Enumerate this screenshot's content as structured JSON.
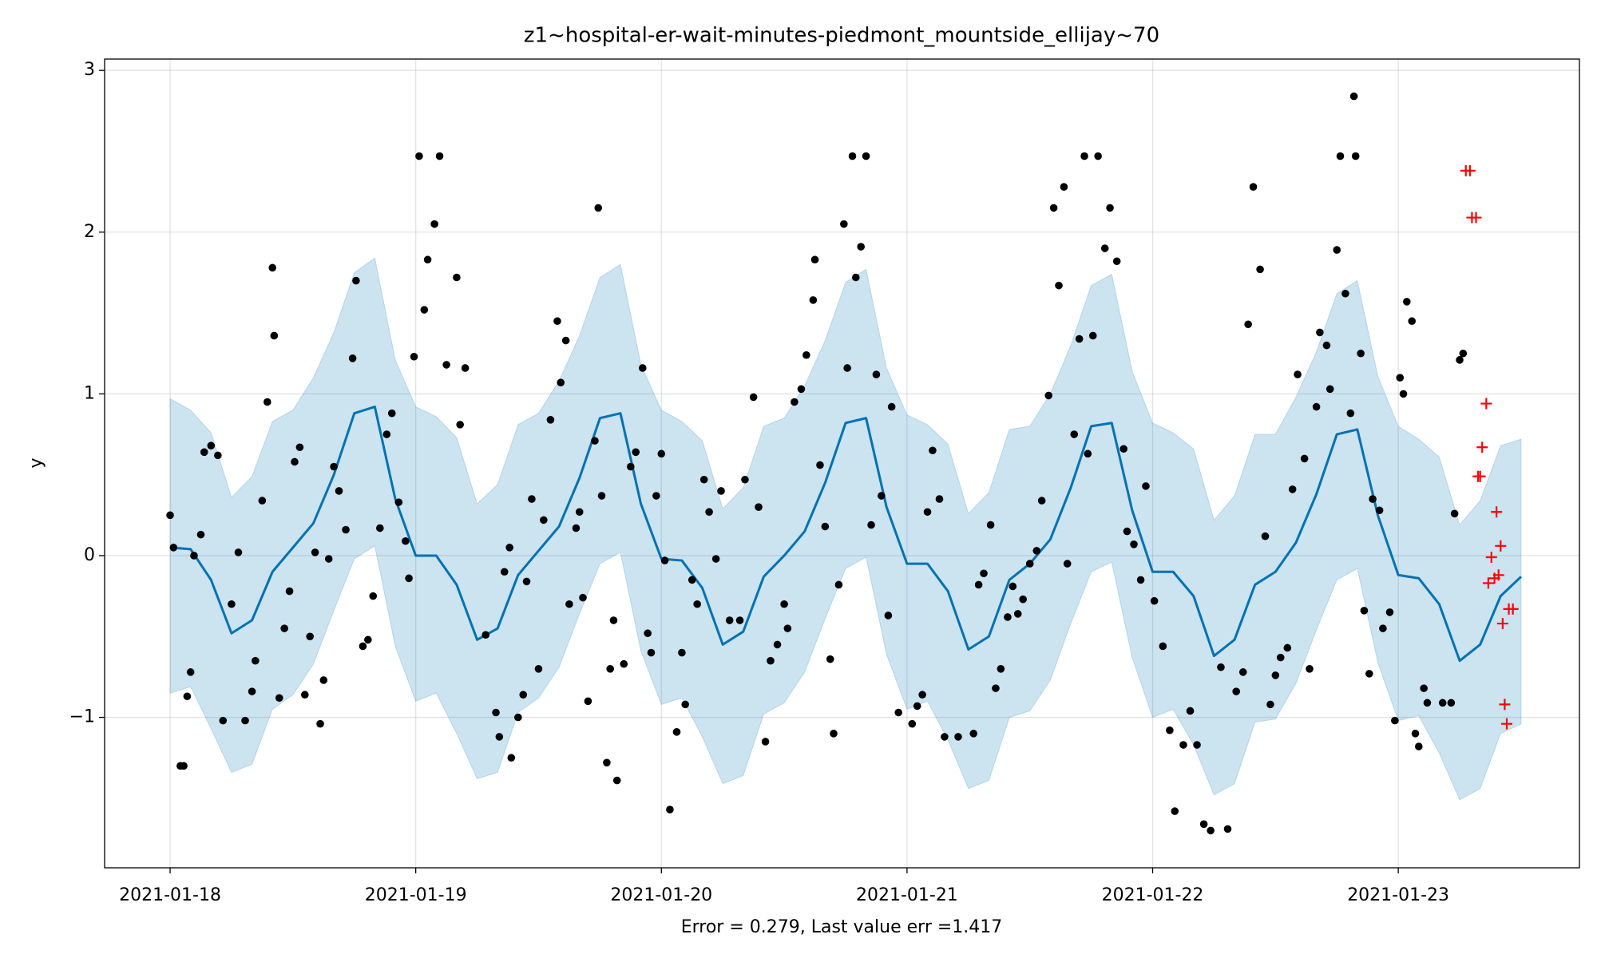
{
  "chart_data": {
    "type": "line",
    "title": "z1~hospital-er-wait-minutes-piedmont_mountside_ellijay~70",
    "xlabel": "Error = 0.279, Last value err =1.417",
    "ylabel": "y",
    "xlim": [
      "2021-01-17 17:36",
      "2021-01-23 17:42"
    ],
    "ylim": [
      -1.93,
      3.07
    ],
    "xticks": [
      "2021-01-18",
      "2021-01-19",
      "2021-01-20",
      "2021-01-21",
      "2021-01-22",
      "2021-01-23"
    ],
    "yticks": [
      {
        "value": -1,
        "label": "−1"
      },
      0,
      1,
      2,
      3
    ],
    "grid": true,
    "series": [
      {
        "type": "line",
        "color": "#0072b2",
        "band_color": "#0072b2",
        "band_alpha": 0.2,
        "x": [
          "2021-01-18 00:00",
          "2021-01-18 02:00",
          "2021-01-18 04:00",
          "2021-01-18 06:00",
          "2021-01-18 08:00",
          "2021-01-18 10:00",
          "2021-01-18 12:00",
          "2021-01-18 14:00",
          "2021-01-18 16:00",
          "2021-01-18 18:00",
          "2021-01-18 20:00",
          "2021-01-18 22:00",
          "2021-01-19 00:00",
          "2021-01-19 02:00",
          "2021-01-19 04:00",
          "2021-01-19 06:00",
          "2021-01-19 08:00",
          "2021-01-19 10:00",
          "2021-01-19 12:00",
          "2021-01-19 14:00",
          "2021-01-19 16:00",
          "2021-01-19 18:00",
          "2021-01-19 20:00",
          "2021-01-19 22:00",
          "2021-01-20 00:00",
          "2021-01-20 02:00",
          "2021-01-20 04:00",
          "2021-01-20 06:00",
          "2021-01-20 08:00",
          "2021-01-20 10:00",
          "2021-01-20 12:00",
          "2021-01-20 14:00",
          "2021-01-20 16:00",
          "2021-01-20 18:00",
          "2021-01-20 20:00",
          "2021-01-20 22:00",
          "2021-01-21 00:00",
          "2021-01-21 02:00",
          "2021-01-21 04:00",
          "2021-01-21 06:00",
          "2021-01-21 08:00",
          "2021-01-21 10:00",
          "2021-01-21 12:00",
          "2021-01-21 14:00",
          "2021-01-21 16:00",
          "2021-01-21 18:00",
          "2021-01-21 20:00",
          "2021-01-21 22:00",
          "2021-01-22 00:00",
          "2021-01-22 02:00",
          "2021-01-22 04:00",
          "2021-01-22 06:00",
          "2021-01-22 08:00",
          "2021-01-22 10:00",
          "2021-01-22 12:00",
          "2021-01-22 14:00",
          "2021-01-22 16:00",
          "2021-01-22 18:00",
          "2021-01-22 20:00",
          "2021-01-22 22:00",
          "2021-01-23 00:00",
          "2021-01-23 02:00",
          "2021-01-23 04:00",
          "2021-01-23 06:00",
          "2021-01-23 08:00",
          "2021-01-23 10:00",
          "2021-01-23 12:00"
        ],
        "values": [
          0.05,
          0.04,
          -0.15,
          -0.48,
          -0.4,
          -0.1,
          0.05,
          0.2,
          0.5,
          0.88,
          0.92,
          0.35,
          0.0,
          0.0,
          -0.18,
          -0.52,
          -0.45,
          -0.12,
          0.03,
          0.18,
          0.48,
          0.85,
          0.88,
          0.32,
          -0.02,
          -0.03,
          -0.2,
          -0.55,
          -0.47,
          -0.13,
          0.0,
          0.15,
          0.45,
          0.82,
          0.85,
          0.3,
          -0.05,
          -0.05,
          -0.22,
          -0.58,
          -0.5,
          -0.15,
          -0.05,
          0.1,
          0.42,
          0.8,
          0.82,
          0.28,
          -0.1,
          -0.1,
          -0.25,
          -0.62,
          -0.52,
          -0.18,
          -0.1,
          0.08,
          0.38,
          0.75,
          0.78,
          0.25,
          -0.12,
          -0.14,
          -0.3,
          -0.65,
          -0.55,
          -0.25,
          -0.13
        ],
        "upper": [
          0.97,
          0.9,
          0.76,
          0.36,
          0.49,
          0.83,
          0.9,
          1.1,
          1.38,
          1.75,
          1.84,
          1.21,
          0.92,
          0.86,
          0.73,
          0.32,
          0.44,
          0.81,
          0.88,
          1.08,
          1.36,
          1.72,
          1.8,
          1.18,
          0.9,
          0.83,
          0.71,
          0.29,
          0.42,
          0.8,
          0.85,
          1.05,
          1.33,
          1.69,
          1.77,
          1.16,
          0.87,
          0.81,
          0.69,
          0.26,
          0.39,
          0.78,
          0.8,
          1.0,
          1.3,
          1.67,
          1.74,
          1.14,
          0.82,
          0.76,
          0.66,
          0.22,
          0.37,
          0.75,
          0.75,
          0.98,
          1.26,
          1.62,
          1.7,
          1.11,
          0.8,
          0.72,
          0.61,
          0.19,
          0.34,
          0.68,
          0.72
        ],
        "lower": [
          -0.85,
          -0.81,
          -1.07,
          -1.34,
          -1.29,
          -0.95,
          -0.86,
          -0.67,
          -0.34,
          -0.02,
          0.06,
          -0.56,
          -0.9,
          -0.85,
          -1.1,
          -1.38,
          -1.34,
          -0.97,
          -0.88,
          -0.69,
          -0.36,
          -0.05,
          0.02,
          -0.59,
          -0.92,
          -0.88,
          -1.12,
          -1.41,
          -1.36,
          -0.98,
          -0.91,
          -0.72,
          -0.39,
          -0.08,
          -0.01,
          -0.61,
          -0.95,
          -0.9,
          -1.14,
          -1.44,
          -1.39,
          -1.0,
          -0.96,
          -0.77,
          -0.42,
          -0.1,
          -0.04,
          -0.63,
          -1.0,
          -0.95,
          -1.17,
          -1.48,
          -1.41,
          -1.03,
          -1.01,
          -0.79,
          -0.46,
          -0.15,
          -0.08,
          -0.66,
          -1.02,
          -0.99,
          -1.22,
          -1.51,
          -1.44,
          -1.1,
          -1.04
        ]
      },
      {
        "type": "scatter",
        "marker": "o",
        "color": "#000000",
        "x": [
          "2021-01-18 00:00",
          "2021-01-18 00:20",
          "2021-01-18 01:00",
          "2021-01-18 01:20",
          "2021-01-18 01:40",
          "2021-01-18 02:00",
          "2021-01-18 02:20",
          "2021-01-18 03:00",
          "2021-01-18 03:20",
          "2021-01-18 04:00",
          "2021-01-18 04:40",
          "2021-01-18 05:10",
          "2021-01-18 06:00",
          "2021-01-18 06:40",
          "2021-01-18 07:20",
          "2021-01-18 08:00",
          "2021-01-18 08:20",
          "2021-01-18 09:00",
          "2021-01-18 09:30",
          "2021-01-18 10:00",
          "2021-01-18 10:10",
          "2021-01-18 10:40",
          "2021-01-18 11:10",
          "2021-01-18 11:40",
          "2021-01-18 12:10",
          "2021-01-18 12:40",
          "2021-01-18 13:10",
          "2021-01-18 13:40",
          "2021-01-18 14:10",
          "2021-01-18 14:40",
          "2021-01-18 15:00",
          "2021-01-18 15:30",
          "2021-01-18 16:00",
          "2021-01-18 16:30",
          "2021-01-18 17:10",
          "2021-01-18 17:50",
          "2021-01-18 18:10",
          "2021-01-18 18:50",
          "2021-01-18 19:20",
          "2021-01-18 19:50",
          "2021-01-18 20:30",
          "2021-01-18 21:10",
          "2021-01-18 21:40",
          "2021-01-18 22:20",
          "2021-01-18 23:00",
          "2021-01-18 23:20",
          "2021-01-18 23:50",
          "2021-01-19 00:20",
          "2021-01-19 00:50",
          "2021-01-19 01:10",
          "2021-01-19 01:50",
          "2021-01-19 02:20",
          "2021-01-19 03:00",
          "2021-01-19 04:00",
          "2021-01-19 04:20",
          "2021-01-19 04:50",
          "2021-01-19 06:50",
          "2021-01-19 07:50",
          "2021-01-19 08:10",
          "2021-01-19 08:40",
          "2021-01-19 09:10",
          "2021-01-19 09:20",
          "2021-01-19 10:00",
          "2021-01-19 10:30",
          "2021-01-19 10:50",
          "2021-01-19 11:20",
          "2021-01-19 12:00",
          "2021-01-19 12:30",
          "2021-01-19 13:10",
          "2021-01-19 13:50",
          "2021-01-19 14:10",
          "2021-01-19 14:40",
          "2021-01-19 15:00",
          "2021-01-19 15:40",
          "2021-01-19 16:00",
          "2021-01-19 16:20",
          "2021-01-19 16:50",
          "2021-01-19 17:30",
          "2021-01-19 17:50",
          "2021-01-19 18:10",
          "2021-01-19 18:40",
          "2021-01-19 19:00",
          "2021-01-19 19:20",
          "2021-01-19 19:40",
          "2021-01-19 20:20",
          "2021-01-19 21:00",
          "2021-01-19 21:30",
          "2021-01-19 22:10",
          "2021-01-19 22:40",
          "2021-01-19 23:00",
          "2021-01-19 23:30",
          "2021-01-20 00:00",
          "2021-01-20 00:20",
          "2021-01-20 00:50",
          "2021-01-20 01:30",
          "2021-01-20 02:00",
          "2021-01-20 02:20",
          "2021-01-20 03:00",
          "2021-01-20 03:30",
          "2021-01-20 04:10",
          "2021-01-20 04:40",
          "2021-01-20 05:20",
          "2021-01-20 05:50",
          "2021-01-20 06:40",
          "2021-01-20 07:40",
          "2021-01-20 08:10",
          "2021-01-20 09:00",
          "2021-01-20 09:30",
          "2021-01-20 10:10",
          "2021-01-20 10:40",
          "2021-01-20 11:20",
          "2021-01-20 12:00",
          "2021-01-20 12:20",
          "2021-01-20 13:00",
          "2021-01-20 13:40",
          "2021-01-20 14:10",
          "2021-01-20 14:50",
          "2021-01-20 15:00",
          "2021-01-20 15:30",
          "2021-01-20 16:00",
          "2021-01-20 16:30",
          "2021-01-20 16:50",
          "2021-01-20 17:20",
          "2021-01-20 17:50",
          "2021-01-20 18:10",
          "2021-01-20 18:40",
          "2021-01-20 19:00",
          "2021-01-20 19:30",
          "2021-01-20 20:00",
          "2021-01-20 20:30",
          "2021-01-20 21:00",
          "2021-01-20 21:30",
          "2021-01-20 22:10",
          "2021-01-20 22:30",
          "2021-01-20 23:10",
          "2021-01-21 00:30",
          "2021-01-21 01:00",
          "2021-01-21 01:30",
          "2021-01-21 02:00",
          "2021-01-21 02:30",
          "2021-01-21 03:10",
          "2021-01-21 03:40",
          "2021-01-21 05:00",
          "2021-01-21 06:30",
          "2021-01-21 07:00",
          "2021-01-21 07:30",
          "2021-01-21 08:10",
          "2021-01-21 08:40",
          "2021-01-21 09:10",
          "2021-01-21 09:50",
          "2021-01-21 10:20",
          "2021-01-21 10:50",
          "2021-01-21 11:20",
          "2021-01-21 12:00",
          "2021-01-21 12:40",
          "2021-01-21 13:10",
          "2021-01-21 13:50",
          "2021-01-21 14:20",
          "2021-01-21 14:50",
          "2021-01-21 15:20",
          "2021-01-21 15:40",
          "2021-01-21 16:20",
          "2021-01-21 16:50",
          "2021-01-21 17:20",
          "2021-01-21 17:40",
          "2021-01-21 18:10",
          "2021-01-21 18:40",
          "2021-01-21 19:20",
          "2021-01-21 19:50",
          "2021-01-21 20:30",
          "2021-01-21 21:10",
          "2021-01-21 21:30",
          "2021-01-21 22:10",
          "2021-01-21 22:50",
          "2021-01-21 23:20",
          "2021-01-22 00:10",
          "2021-01-22 01:00",
          "2021-01-22 01:40",
          "2021-01-22 02:10",
          "2021-01-22 03:00",
          "2021-01-22 03:40",
          "2021-01-22 04:20",
          "2021-01-22 05:00",
          "2021-01-22 05:40",
          "2021-01-22 06:40",
          "2021-01-22 07:20",
          "2021-01-22 08:10",
          "2021-01-22 08:50",
          "2021-01-22 09:20",
          "2021-01-22 09:50",
          "2021-01-22 10:30",
          "2021-01-22 11:00",
          "2021-01-22 11:30",
          "2021-01-22 12:00",
          "2021-01-22 12:30",
          "2021-01-22 13:10",
          "2021-01-22 13:40",
          "2021-01-22 14:10",
          "2021-01-22 14:50",
          "2021-01-22 15:20",
          "2021-01-22 16:00",
          "2021-01-22 16:20",
          "2021-01-22 17:00",
          "2021-01-22 17:20",
          "2021-01-22 18:00",
          "2021-01-22 18:20",
          "2021-01-22 18:50",
          "2021-01-22 19:20",
          "2021-01-22 19:40",
          "2021-01-22 19:50",
          "2021-01-22 20:20",
          "2021-01-22 20:40",
          "2021-01-22 21:10",
          "2021-01-22 21:30",
          "2021-01-22 22:10",
          "2021-01-22 22:30",
          "2021-01-22 23:10",
          "2021-01-22 23:40",
          "2021-01-23 00:10",
          "2021-01-23 00:30",
          "2021-01-23 00:50",
          "2021-01-23 01:20",
          "2021-01-23 01:40",
          "2021-01-23 02:00",
          "2021-01-23 02:30",
          "2021-01-23 02:50",
          "2021-01-23 04:20",
          "2021-01-23 05:10",
          "2021-01-23 05:30",
          "2021-01-23 06:00",
          "2021-01-23 06:20"
        ],
        "values": [
          0.25,
          0.05,
          -1.3,
          -1.3,
          -0.87,
          -0.72,
          0.0,
          0.13,
          0.64,
          0.68,
          0.62,
          -1.02,
          -0.3,
          0.02,
          -1.02,
          -0.84,
          -0.65,
          0.34,
          0.95,
          1.78,
          1.36,
          -0.88,
          -0.45,
          -0.22,
          0.58,
          0.67,
          -0.86,
          -0.5,
          0.02,
          -1.04,
          -0.77,
          -0.02,
          0.55,
          0.4,
          0.16,
          1.22,
          1.7,
          -0.56,
          -0.52,
          -0.25,
          0.17,
          0.75,
          0.88,
          0.33,
          0.09,
          -0.14,
          1.23,
          2.47,
          1.52,
          1.83,
          2.05,
          2.47,
          1.18,
          1.72,
          0.81,
          1.16,
          -0.49,
          -0.97,
          -1.12,
          -0.1,
          0.05,
          -1.25,
          -1.0,
          -0.86,
          -0.16,
          0.35,
          -0.7,
          0.22,
          0.84,
          1.45,
          1.07,
          1.33,
          -0.3,
          0.17,
          0.27,
          -0.26,
          -0.9,
          0.71,
          2.15,
          0.37,
          -1.28,
          -0.7,
          -0.4,
          -1.39,
          -0.67,
          0.55,
          0.64,
          1.16,
          -0.48,
          -0.6,
          0.37,
          0.63,
          -0.03,
          -1.57,
          -1.09,
          -0.6,
          -0.92,
          -0.15,
          -0.3,
          0.47,
          0.27,
          -0.02,
          0.4,
          -0.4,
          -0.4,
          0.47,
          0.98,
          0.3,
          -1.15,
          -0.65,
          -0.55,
          -0.3,
          -0.45,
          0.95,
          1.03,
          1.24,
          1.58,
          1.83,
          0.56,
          0.18,
          -0.64,
          -1.1,
          -0.18,
          2.05,
          1.16,
          2.47,
          1.72,
          1.91,
          2.47,
          0.19,
          1.12,
          0.37,
          -0.37,
          0.92,
          -0.97,
          -1.04,
          -0.93,
          -0.86,
          0.27,
          0.65,
          0.35,
          -1.12,
          -1.12,
          -1.1,
          -0.18,
          -0.11,
          0.19,
          -0.82,
          -0.7,
          -0.38,
          -0.19,
          -0.36,
          -0.27,
          -0.05,
          0.03,
          0.34,
          0.99,
          2.15,
          1.67,
          2.28,
          -0.05,
          0.75,
          1.34,
          2.47,
          0.63,
          1.36,
          2.47,
          1.9,
          2.15,
          1.82,
          0.66,
          0.15,
          0.07,
          -0.15,
          0.43,
          -0.28,
          -0.56,
          -1.08,
          -1.58,
          -1.17,
          -0.96,
          -1.17,
          -1.66,
          -1.7,
          -0.69,
          -1.69,
          -0.84,
          -0.72,
          1.43,
          2.28,
          1.77,
          0.12,
          -0.92,
          -0.74,
          -0.63,
          -0.57,
          0.41,
          1.12,
          0.6,
          -0.7,
          0.92,
          1.38,
          1.3,
          1.03,
          1.89,
          2.47,
          1.62,
          0.88,
          2.84,
          2.47,
          1.25,
          -0.34,
          -0.73,
          0.35,
          0.28,
          -0.45,
          -0.35,
          -1.02,
          1.1,
          1.0,
          1.57,
          1.45,
          -1.1,
          -1.18,
          -0.82,
          -0.91,
          -0.91,
          -0.91,
          0.26,
          1.21,
          1.25
        ]
      },
      {
        "type": "scatter",
        "marker": "+",
        "color": "#ff0000",
        "x": [
          "2021-01-23 06:36",
          "2021-01-23 07:00",
          "2021-01-23 07:12",
          "2021-01-23 07:36",
          "2021-01-23 07:48",
          "2021-01-23 08:00",
          "2021-01-23 08:12",
          "2021-01-23 08:36",
          "2021-01-23 08:48",
          "2021-01-23 09:06",
          "2021-01-23 09:24",
          "2021-01-23 09:36",
          "2021-01-23 09:48",
          "2021-01-23 10:00",
          "2021-01-23 10:12",
          "2021-01-23 10:24",
          "2021-01-23 10:36",
          "2021-01-23 10:48",
          "2021-01-23 11:12"
        ],
        "values": [
          2.38,
          2.38,
          2.09,
          2.09,
          0.49,
          0.49,
          0.67,
          0.94,
          -0.17,
          -0.01,
          -0.14,
          0.27,
          -0.12,
          0.06,
          -0.42,
          -0.92,
          -1.04,
          -0.33,
          -0.33
        ]
      }
    ]
  }
}
